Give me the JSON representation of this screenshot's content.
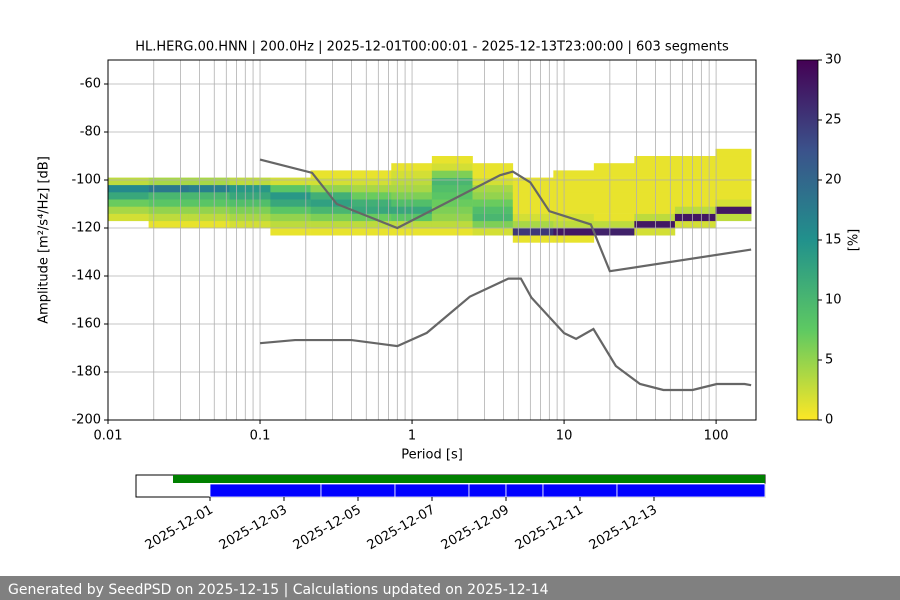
{
  "chart_data": [
    {
      "type": "heatmap",
      "title": "HL.HERG.00.HNN | 200.0Hz | 2025-12-01T00:00:01 - 2025-12-13T23:00:00 | 603 segments",
      "x_label": "Period [s]",
      "y_label": "Amplitude [m²/s⁴/Hz] [dB]",
      "xscale": "log",
      "xlim": [
        0.01,
        183
      ],
      "xticks": [
        0.01,
        0.1,
        1,
        10,
        100
      ],
      "xminorticks": [
        0.02,
        0.03,
        0.04,
        0.05,
        0.06,
        0.07,
        0.08,
        0.09,
        0.2,
        0.3,
        0.4,
        0.5,
        0.6,
        0.7,
        0.8,
        0.9,
        2,
        3,
        4,
        5,
        6,
        7,
        8,
        9,
        20,
        30,
        40,
        50,
        60,
        70,
        80,
        90
      ],
      "ylim": [
        -200,
        -50
      ],
      "yticks": [
        -200,
        -180,
        -160,
        -140,
        -120,
        -100,
        -80,
        -60
      ],
      "grid": true,
      "pdf": {
        "period_edges": [
          0.01,
          0.0185,
          0.034,
          0.063,
          0.117,
          0.215,
          0.4,
          0.73,
          1.35,
          2.5,
          4.6,
          8.5,
          15.7,
          29,
          53.6,
          99,
          170
        ],
        "db_edges": [
          -126,
          -123,
          -120,
          -117,
          -114,
          -111,
          -108,
          -105,
          -102,
          -99,
          -96,
          -93,
          -90,
          -87
        ],
        "values": [
          [
            null,
            null,
            null,
            2,
            4,
            7,
            12,
            16,
            3,
            null,
            null,
            null,
            null
          ],
          [
            null,
            null,
            1,
            3,
            5,
            8,
            10,
            18,
            4,
            null,
            null,
            null,
            null
          ],
          [
            null,
            null,
            1,
            3,
            5,
            8,
            10,
            17,
            4,
            null,
            null,
            null,
            null
          ],
          [
            null,
            null,
            2,
            4,
            6,
            9,
            12,
            14,
            3,
            null,
            null,
            null,
            null
          ],
          [
            null,
            1,
            3,
            5,
            8,
            12,
            14,
            8,
            2,
            null,
            null,
            null,
            null
          ],
          [
            null,
            1,
            3,
            6,
            10,
            13,
            11,
            5,
            2,
            1,
            null,
            null,
            null
          ],
          [
            null,
            1,
            3,
            7,
            12,
            11,
            7,
            4,
            2,
            1,
            null,
            null,
            null
          ],
          [
            null,
            1,
            3,
            8,
            12,
            9,
            6,
            4,
            3,
            2,
            1,
            null,
            null
          ],
          [
            null,
            1,
            3,
            5,
            6,
            7,
            8,
            9,
            10,
            6,
            2,
            1,
            null
          ],
          [
            null,
            2,
            6,
            10,
            9,
            7,
            5,
            4,
            2,
            1,
            1,
            null,
            null
          ],
          [
            1,
            25,
            4,
            2,
            1,
            1,
            1,
            1,
            1,
            null,
            null,
            null,
            null
          ],
          [
            1,
            28,
            3,
            2,
            1,
            1,
            1,
            1,
            1,
            1,
            null,
            null,
            null
          ],
          [
            null,
            27,
            3,
            1,
            1,
            1,
            1,
            1,
            1,
            1,
            1,
            null,
            null
          ],
          [
            null,
            2,
            28,
            3,
            1,
            1,
            1,
            1,
            1,
            1,
            1,
            1,
            null
          ],
          [
            null,
            null,
            2,
            28,
            3,
            1,
            1,
            1,
            1,
            1,
            1,
            1,
            null
          ],
          [
            null,
            null,
            null,
            3,
            28,
            2,
            1,
            1,
            1,
            1,
            1,
            1,
            1
          ]
        ]
      },
      "colorbar": {
        "label": "[%]",
        "lim": [
          0,
          30
        ],
        "ticks": [
          0,
          5,
          10,
          15,
          20,
          25,
          30
        ],
        "colormap": [
          "#fde725",
          "#5ec962",
          "#21918c",
          "#3b528b",
          "#440154"
        ]
      },
      "series": [
        {
          "color": "#666666",
          "x": [
            0.1,
            0.22,
            0.32,
            0.8,
            3.8,
            4.6,
            6,
            8,
            15,
            20,
            170
          ],
          "values": [
            -91.5,
            -97,
            -110,
            -120,
            -98,
            -96.5,
            -101,
            -113,
            -118.5,
            -138,
            -129
          ]
        },
        {
          "color": "#666666",
          "x": [
            0.1,
            0.17,
            0.4,
            0.8,
            1.25,
            2.4,
            4.3,
            5.2,
            6.1,
            10,
            12,
            15.6,
            21.9,
            31.6,
            45,
            70,
            101,
            154,
            170
          ],
          "values": [
            -168,
            -166.7,
            -166.7,
            -169.2,
            -163.7,
            -148.6,
            -141.1,
            -141.1,
            -149,
            -163.8,
            -166.2,
            -162.1,
            -177.5,
            -185,
            -187.5,
            -187.5,
            -185,
            -185,
            -185.5
          ]
        }
      ]
    },
    {
      "type": "timeline",
      "xlim": [
        "2025-11-29",
        "2025-12-16"
      ],
      "xticks": [
        "2025-12-01",
        "2025-12-03",
        "2025-12-05",
        "2025-12-07",
        "2025-12-09",
        "2025-12-11",
        "2025-12-13"
      ],
      "bars": [
        {
          "color": "#008000",
          "segments": [
            [
              "2025-11-30",
              "2025-12-16"
            ]
          ]
        },
        {
          "color": "#0000ff",
          "segments": [
            [
              "2025-12-01",
              "2025-12-04"
            ],
            [
              "2025-12-04",
              "2025-12-06"
            ],
            [
              "2025-12-06",
              "2025-12-08"
            ],
            [
              "2025-12-08",
              "2025-12-09"
            ],
            [
              "2025-12-09",
              "2025-12-10"
            ],
            [
              "2025-12-10",
              "2025-12-12"
            ],
            [
              "2025-12-12",
              "2025-12-16"
            ]
          ]
        }
      ]
    }
  ],
  "footer": "Generated by SeedPSD on 2025-12-15 | Calculations updated on 2025-12-14"
}
